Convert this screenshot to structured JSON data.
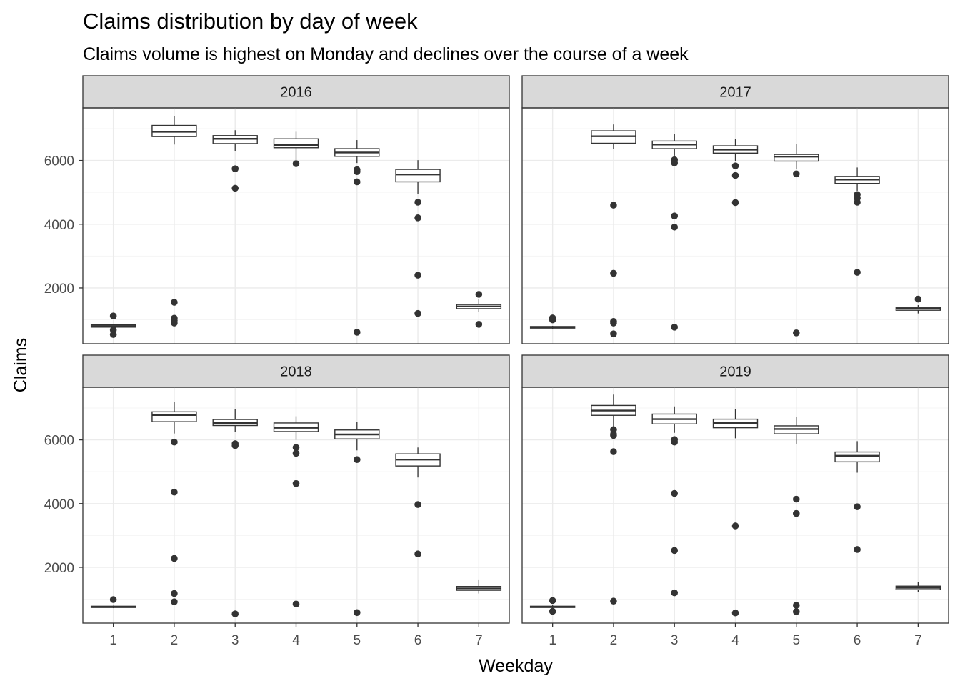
{
  "chart_data": {
    "type": "boxplot",
    "title": "Claims distribution by day of week",
    "subtitle": "Claims volume is highest on Monday and declines over the course of a week",
    "xlabel": "Weekday",
    "ylabel": "Claims",
    "x_ticks": [
      "1",
      "2",
      "3",
      "4",
      "5",
      "6",
      "7"
    ],
    "y_ticks": [
      2000,
      4000,
      6000
    ],
    "ylim": [
      250,
      7650
    ],
    "grid": true,
    "facet_layout": "2x2",
    "colors": {
      "strip_fill": "#d9d9d9",
      "box_fill": "#ffffff",
      "line": "#333333",
      "grid_major": "#ebebeb",
      "grid_minor": "#f5f5f5"
    },
    "panels": [
      {
        "label": "2016",
        "boxes": [
          {
            "x": "1",
            "min": 740,
            "q1": 770,
            "median": 800,
            "q3": 840,
            "max": 860,
            "outliers": [
              1120,
              680,
              540
            ]
          },
          {
            "x": "2",
            "min": 6500,
            "q1": 6750,
            "median": 6900,
            "q3": 7100,
            "max": 7400,
            "outliers": [
              1550,
              1050,
              980,
              900
            ]
          },
          {
            "x": "3",
            "min": 6300,
            "q1": 6530,
            "median": 6680,
            "q3": 6780,
            "max": 6950,
            "outliers": [
              5740,
              5130
            ]
          },
          {
            "x": "4",
            "min": 6010,
            "q1": 6400,
            "median": 6480,
            "q3": 6680,
            "max": 6900,
            "outliers": [
              5900
            ]
          },
          {
            "x": "5",
            "min": 5920,
            "q1": 6130,
            "median": 6250,
            "q3": 6370,
            "max": 6640,
            "outliers": [
              5710,
              5650,
              5330,
              610
            ]
          },
          {
            "x": "6",
            "min": 4960,
            "q1": 5330,
            "median": 5560,
            "q3": 5720,
            "max": 6010,
            "outliers": [
              4690,
              4200,
              2400,
              1200
            ]
          },
          {
            "x": "7",
            "min": 1250,
            "q1": 1350,
            "median": 1420,
            "q3": 1480,
            "max": 1640,
            "outliers": [
              1800,
              860
            ]
          }
        ]
      },
      {
        "label": "2017",
        "boxes": [
          {
            "x": "1",
            "min": 720,
            "q1": 740,
            "median": 770,
            "q3": 790,
            "max": 810,
            "outliers": [
              1060,
              1000
            ]
          },
          {
            "x": "2",
            "min": 6350,
            "q1": 6540,
            "median": 6760,
            "q3": 6930,
            "max": 7130,
            "outliers": [
              4600,
              2460,
              950,
              900,
              560
            ]
          },
          {
            "x": "3",
            "min": 6150,
            "q1": 6370,
            "median": 6500,
            "q3": 6610,
            "max": 6840,
            "outliers": [
              6020,
              5920,
              4260,
              3910,
              770
            ]
          },
          {
            "x": "4",
            "min": 5980,
            "q1": 6230,
            "median": 6340,
            "q3": 6460,
            "max": 6680,
            "outliers": [
              5830,
              5530,
              4680
            ]
          },
          {
            "x": "5",
            "min": 5720,
            "q1": 5980,
            "median": 6120,
            "q3": 6190,
            "max": 6520,
            "outliers": [
              5580,
              590
            ]
          },
          {
            "x": "6",
            "min": 5050,
            "q1": 5280,
            "median": 5400,
            "q3": 5500,
            "max": 5780,
            "outliers": [
              4930,
              4820,
              4690,
              2490
            ]
          },
          {
            "x": "7",
            "min": 1200,
            "q1": 1300,
            "median": 1360,
            "q3": 1400,
            "max": 1460,
            "outliers": [
              1650
            ]
          }
        ]
      },
      {
        "label": "2018",
        "boxes": [
          {
            "x": "1",
            "min": 720,
            "q1": 740,
            "median": 760,
            "q3": 780,
            "max": 800,
            "outliers": [
              990
            ]
          },
          {
            "x": "2",
            "min": 6200,
            "q1": 6570,
            "median": 6780,
            "q3": 6880,
            "max": 7200,
            "outliers": [
              5930,
              4360,
              2280,
              1180,
              920
            ]
          },
          {
            "x": "3",
            "min": 6250,
            "q1": 6450,
            "median": 6530,
            "q3": 6640,
            "max": 6960,
            "outliers": [
              5880,
              5820,
              540
            ]
          },
          {
            "x": "4",
            "min": 6000,
            "q1": 6260,
            "median": 6380,
            "q3": 6530,
            "max": 6740,
            "outliers": [
              5760,
              5580,
              4630,
              850
            ]
          },
          {
            "x": "5",
            "min": 5670,
            "q1": 6030,
            "median": 6170,
            "q3": 6310,
            "max": 6570,
            "outliers": [
              5380,
              580
            ]
          },
          {
            "x": "6",
            "min": 4820,
            "q1": 5180,
            "median": 5380,
            "q3": 5560,
            "max": 5760,
            "outliers": [
              3970,
              2420
            ]
          },
          {
            "x": "7",
            "min": 1180,
            "q1": 1280,
            "median": 1340,
            "q3": 1400,
            "max": 1620,
            "outliers": []
          }
        ]
      },
      {
        "label": "2019",
        "boxes": [
          {
            "x": "1",
            "min": 710,
            "q1": 740,
            "median": 760,
            "q3": 780,
            "max": 810,
            "outliers": [
              960,
              620
            ]
          },
          {
            "x": "2",
            "min": 6320,
            "q1": 6770,
            "median": 6920,
            "q3": 7080,
            "max": 7420,
            "outliers": [
              6320,
              6180,
              6140,
              5630,
              940
            ]
          },
          {
            "x": "3",
            "min": 6220,
            "q1": 6500,
            "median": 6650,
            "q3": 6810,
            "max": 7050,
            "outliers": [
              6010,
              5930,
              4320,
              2530,
              1200
            ]
          },
          {
            "x": "4",
            "min": 6050,
            "q1": 6380,
            "median": 6530,
            "q3": 6650,
            "max": 6970,
            "outliers": [
              3300,
              570
            ]
          },
          {
            "x": "5",
            "min": 5880,
            "q1": 6190,
            "median": 6340,
            "q3": 6440,
            "max": 6720,
            "outliers": [
              4140,
              3690,
              810,
              610
            ]
          },
          {
            "x": "6",
            "min": 4970,
            "q1": 5310,
            "median": 5500,
            "q3": 5620,
            "max": 5960,
            "outliers": [
              3900,
              2560
            ]
          },
          {
            "x": "7",
            "min": 1230,
            "q1": 1300,
            "median": 1360,
            "q3": 1410,
            "max": 1530,
            "outliers": []
          }
        ]
      }
    ]
  }
}
